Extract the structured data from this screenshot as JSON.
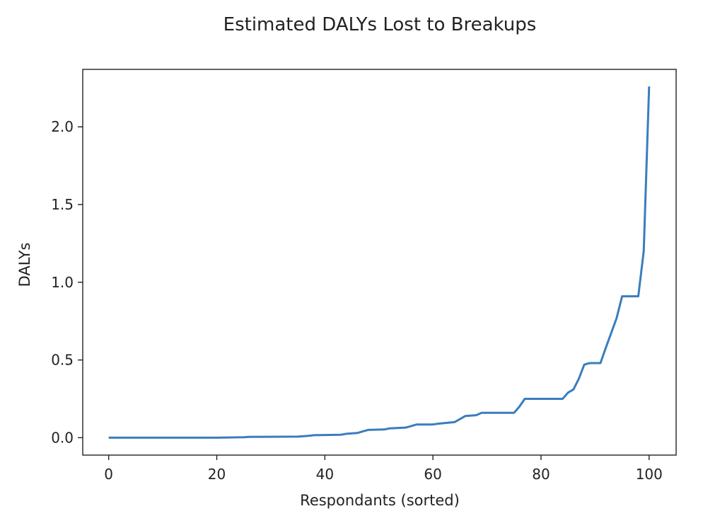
{
  "chart_data": {
    "type": "line",
    "title": "Estimated DALYs Lost to Breakups",
    "xlabel": "Respondants (sorted)",
    "ylabel": "DALYs",
    "xlim": [
      -4.8,
      105
    ],
    "ylim": [
      -0.112,
      2.37
    ],
    "xticks": [
      0,
      20,
      40,
      60,
      80,
      100
    ],
    "xtick_labels": [
      "0",
      "20",
      "40",
      "60",
      "80",
      "100"
    ],
    "yticks": [
      0.0,
      0.5,
      1.0,
      1.5,
      2.0
    ],
    "ytick_labels": [
      "0.0",
      "0.5",
      "1.0",
      "1.5",
      "2.0"
    ],
    "grid": false,
    "line_color": "#3a7dbd",
    "series": [
      {
        "x": [
          0,
          20,
          25,
          26,
          35,
          37,
          38,
          43,
          44,
          46,
          47,
          48,
          51,
          52,
          55,
          56,
          57,
          60,
          61,
          64,
          65,
          66,
          68,
          69,
          75,
          76,
          77,
          84,
          85,
          86,
          87,
          88,
          89,
          91,
          92,
          94,
          95,
          98,
          99,
          100
        ],
        "y": [
          0.0,
          0.0,
          0.003,
          0.005,
          0.007,
          0.012,
          0.016,
          0.019,
          0.025,
          0.03,
          0.04,
          0.05,
          0.053,
          0.06,
          0.065,
          0.075,
          0.085,
          0.085,
          0.09,
          0.1,
          0.12,
          0.14,
          0.145,
          0.16,
          0.16,
          0.2,
          0.25,
          0.25,
          0.29,
          0.31,
          0.38,
          0.47,
          0.48,
          0.48,
          0.58,
          0.77,
          0.91,
          0.91,
          1.2,
          2.26
        ]
      }
    ]
  }
}
